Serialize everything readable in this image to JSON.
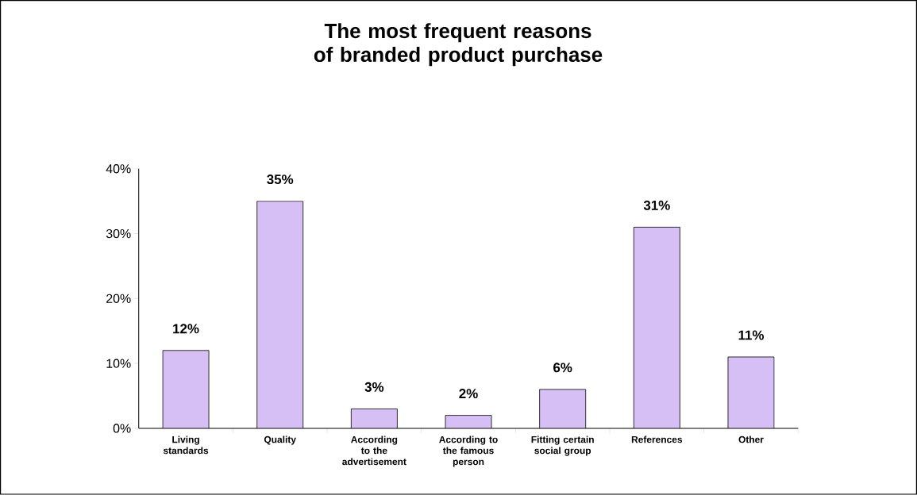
{
  "chart_data": {
    "type": "bar",
    "title": "The most frequent reasons of branded product purchase",
    "categories": [
      "Living standards",
      "Quality",
      "According to the advertisement",
      "According to the famous person",
      "Fitting certain social group",
      "References",
      "Other"
    ],
    "values": [
      12,
      35,
      3,
      2,
      6,
      31,
      11
    ],
    "value_labels": [
      "12%",
      "35%",
      "3%",
      "2%",
      "6%",
      "31%",
      "11%"
    ],
    "color": "#d6bff5",
    "ylim": [
      0,
      40
    ],
    "yticks": [
      {
        "value": 0,
        "label": "0%"
      },
      {
        "value": 10,
        "label": "10%"
      },
      {
        "value": 20,
        "label": "20%"
      },
      {
        "value": 30,
        "label": "30%"
      },
      {
        "value": 40,
        "label": "40%"
      }
    ],
    "grid": false
  }
}
